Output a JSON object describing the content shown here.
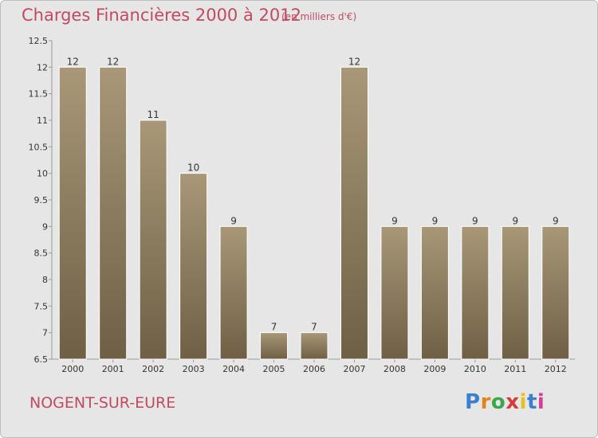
{
  "header": {
    "title": "Charges Financières 2000 à 2012",
    "subtitle": "(en milliers d'€)"
  },
  "footer": {
    "place": "NOGENT-SUR-EURE",
    "logo": "Proxiti",
    "logo_colors": [
      "#3a7fd0",
      "#e2841c",
      "#3aa84a",
      "#d63a3a",
      "#e2c31c",
      "#3a7fd0",
      "#d63a9a"
    ]
  },
  "colors": {
    "bar_light": "#a89878",
    "bar_dark": "#6f5f45",
    "plot_bg": "#e6e6e6",
    "axis": "#999999"
  },
  "chart_data": {
    "type": "bar",
    "title": "Charges Financières 2000 à 2012",
    "subtitle": "(en milliers d'€)",
    "categories": [
      "2000",
      "2001",
      "2002",
      "2003",
      "2004",
      "2005",
      "2006",
      "2007",
      "2008",
      "2009",
      "2010",
      "2011",
      "2012"
    ],
    "values": [
      12,
      12,
      11,
      10,
      9,
      7,
      7,
      12,
      9,
      9,
      9,
      9,
      9
    ],
    "data_labels": [
      "12",
      "12",
      "11",
      "10",
      "9",
      "7",
      "7",
      "12",
      "9",
      "9",
      "9",
      "9",
      "9"
    ],
    "yticks": [
      6.5,
      7,
      7.5,
      8,
      8.5,
      9,
      9.5,
      10,
      10.5,
      11,
      11.5,
      12,
      12.5
    ],
    "ytick_labels": [
      "6.5",
      "7",
      "7.5",
      "8",
      "8.5",
      "9",
      "9.5",
      "10",
      "10.5",
      "11",
      "11.5",
      "12",
      "12.5"
    ],
    "ylim": [
      6.5,
      12.5
    ],
    "xlabel": "",
    "ylabel": "",
    "grid": false,
    "legend": "none"
  }
}
